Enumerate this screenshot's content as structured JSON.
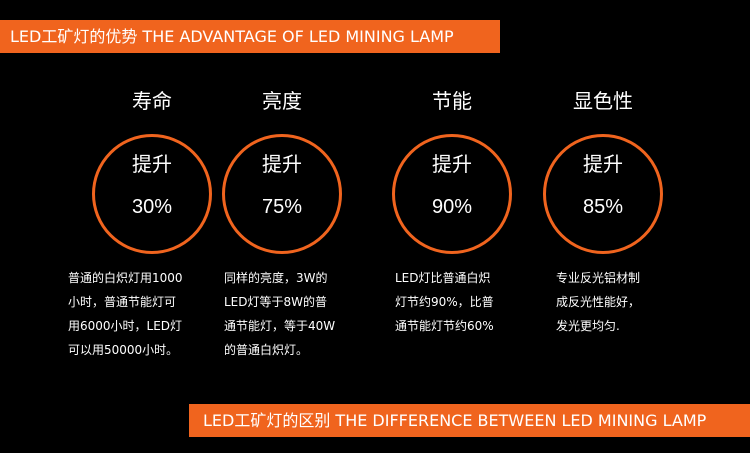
{
  "colors": {
    "accent": "#f0641e",
    "background": "#000000",
    "text": "#ffffff"
  },
  "header": {
    "title": "LED工矿灯的优势 THE ADVANTAGE OF LED MINING LAMP"
  },
  "footer": {
    "title": "LED工矿灯的区别 THE DIFFERENCE BETWEEN LED MINING LAMP"
  },
  "features": [
    {
      "title": "寿命",
      "label": "提升",
      "value": "30%",
      "desc": [
        "普通的白炽灯用1000",
        "小时，普通节能灯可",
        "用6000小时，LED灯",
        "可以用50000小时。"
      ]
    },
    {
      "title": "亮度",
      "label": "提升",
      "value": "75%",
      "desc": [
        "同样的亮度，3W的",
        "LED灯等于8W的普",
        "通节能灯，等于40W",
        "的普通白炽灯。"
      ]
    },
    {
      "title": "节能",
      "label": "提升",
      "value": "90%",
      "desc": [
        "LED灯比普通白炽",
        "灯节约90%，比普",
        "通节能灯节约60%"
      ]
    },
    {
      "title": "显色性",
      "label": "提升",
      "value": "85%",
      "desc": [
        "专业反光铝材制",
        "成反光性能好，",
        "发光更均匀."
      ]
    }
  ]
}
